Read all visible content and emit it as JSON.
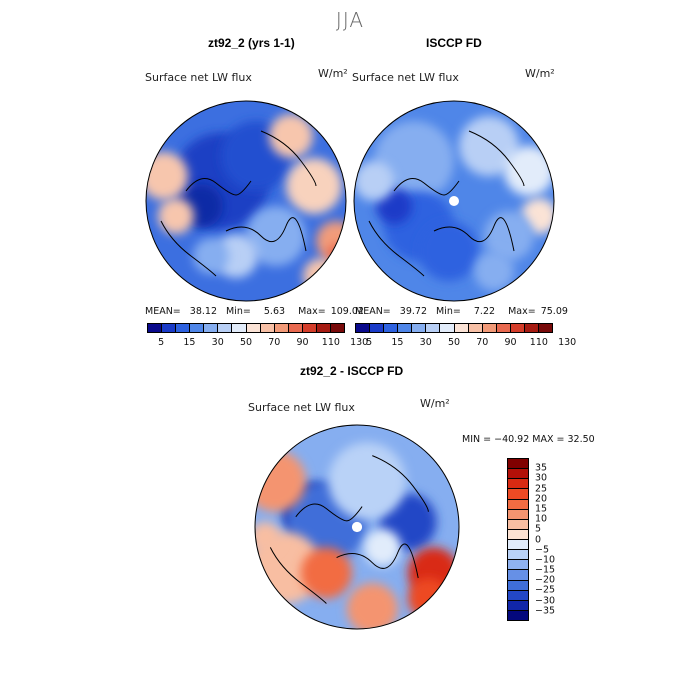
{
  "season": "JJA",
  "panels": {
    "left": {
      "title": "zt92_2 (yrs 1-1)",
      "var_label": "Surface net LW flux",
      "unit": "W/m²",
      "mean_label": "MEAN=",
      "mean": "38.12",
      "min_label": "Min=",
      "min": "5.63",
      "max_label": "Max=",
      "max": "109.02"
    },
    "right": {
      "title": "ISCCP FD",
      "var_label": "Surface net LW flux",
      "unit": "W/m²",
      "mean_label": "MEAN=",
      "mean": "39.72",
      "min_label": "Min=",
      "min": "7.22",
      "max_label": "Max=",
      "max": "75.09"
    },
    "diff": {
      "title": "zt92_2 - ISCCP FD",
      "var_label": "Surface net LW flux",
      "unit": "W/m²",
      "minmax": "MIN = −40.92 MAX =  32.50"
    }
  },
  "colorbars": {
    "abs": {
      "colors": [
        "#0a0a8c",
        "#1a3bc8",
        "#2e62e0",
        "#4f86e8",
        "#86aef0",
        "#b8cff5",
        "#e2ecfa",
        "#fbe3d6",
        "#f7c0a6",
        "#f29a78",
        "#e8694f",
        "#d43d2a",
        "#a61b12",
        "#780a0a"
      ],
      "ticks": [
        "5",
        "15",
        "30",
        "50",
        "70",
        "90",
        "110",
        "130"
      ]
    },
    "diff": {
      "colors": [
        "#800000",
        "#b31008",
        "#d92a12",
        "#ed4a24",
        "#f26c42",
        "#f49470",
        "#f8bea2",
        "#fde3d3",
        "#e1ecfb",
        "#b9d2f7",
        "#8fb2f0",
        "#6690e6",
        "#3f6ed9",
        "#2347c6",
        "#1126a8",
        "#04087c"
      ],
      "ticks": [
        "35",
        "30",
        "25",
        "20",
        "15",
        "10",
        "5",
        "0",
        "−5",
        "−10",
        "−15",
        "−20",
        "−25",
        "−30",
        "−35"
      ]
    }
  },
  "maps": {
    "left": {
      "base": "#3c6fe0",
      "patches": [
        {
          "c": "#1d40c4",
          "x": -25,
          "y": -20,
          "r": 48
        },
        {
          "c": "#2250d0",
          "x": 10,
          "y": -45,
          "r": 35
        },
        {
          "c": "#0e2aa6",
          "x": -45,
          "y": 5,
          "r": 22
        },
        {
          "c": "#f7c6ad",
          "x": -82,
          "y": -25,
          "r": 24
        },
        {
          "c": "#f7c6ad",
          "x": -70,
          "y": 15,
          "r": 18
        },
        {
          "c": "#f8d2bd",
          "x": 68,
          "y": -15,
          "r": 28
        },
        {
          "c": "#f29c7a",
          "x": 90,
          "y": 40,
          "r": 20
        },
        {
          "c": "#e8694f",
          "x": 92,
          "y": 55,
          "r": 12
        },
        {
          "c": "#f7c6ad",
          "x": 75,
          "y": 75,
          "r": 18
        },
        {
          "c": "#86aef0",
          "x": 30,
          "y": 35,
          "r": 30
        },
        {
          "c": "#b8cff5",
          "x": -10,
          "y": 55,
          "r": 22
        },
        {
          "c": "#f7c6ad",
          "x": 45,
          "y": -65,
          "r": 22
        },
        {
          "c": "#86aef0",
          "x": -35,
          "y": 55,
          "r": 18
        }
      ]
    },
    "right": {
      "base": "#4f86e8",
      "patches": [
        {
          "c": "#86aef0",
          "x": -40,
          "y": -40,
          "r": 40
        },
        {
          "c": "#b8cff5",
          "x": 35,
          "y": -55,
          "r": 30
        },
        {
          "c": "#e2ecfa",
          "x": 75,
          "y": -30,
          "r": 25
        },
        {
          "c": "#fbe3d6",
          "x": 85,
          "y": 15,
          "r": 18
        },
        {
          "c": "#2e62e0",
          "x": -35,
          "y": 25,
          "r": 35
        },
        {
          "c": "#2e62e0",
          "x": -5,
          "y": 50,
          "r": 30
        },
        {
          "c": "#86aef0",
          "x": 55,
          "y": 35,
          "r": 25
        },
        {
          "c": "#1a3bc8",
          "x": -60,
          "y": 5,
          "r": 18
        },
        {
          "c": "#b8cff5",
          "x": -80,
          "y": -20,
          "r": 20
        },
        {
          "c": "#86aef0",
          "x": 40,
          "y": 70,
          "r": 20
        }
      ]
    },
    "diff": {
      "base": "#86aef0",
      "patches": [
        {
          "c": "#1126a8",
          "x": -45,
          "y": -15,
          "r": 28
        },
        {
          "c": "#3f6ed9",
          "x": -30,
          "y": -5,
          "r": 40
        },
        {
          "c": "#2347c6",
          "x": 50,
          "y": -5,
          "r": 28
        },
        {
          "c": "#b9d2f7",
          "x": 10,
          "y": -45,
          "r": 38
        },
        {
          "c": "#f49470",
          "x": -80,
          "y": -45,
          "r": 30
        },
        {
          "c": "#f8bea2",
          "x": -70,
          "y": 40,
          "r": 35
        },
        {
          "c": "#f26c42",
          "x": -30,
          "y": 45,
          "r": 25
        },
        {
          "c": "#f49470",
          "x": 15,
          "y": 80,
          "r": 25
        },
        {
          "c": "#d92a12",
          "x": 75,
          "y": 45,
          "r": 25
        },
        {
          "c": "#ed4a24",
          "x": 70,
          "y": 70,
          "r": 20
        },
        {
          "c": "#f8bea2",
          "x": -90,
          "y": 10,
          "r": 15
        },
        {
          "c": "#e1ecfb",
          "x": 25,
          "y": 20,
          "r": 18
        }
      ]
    }
  }
}
